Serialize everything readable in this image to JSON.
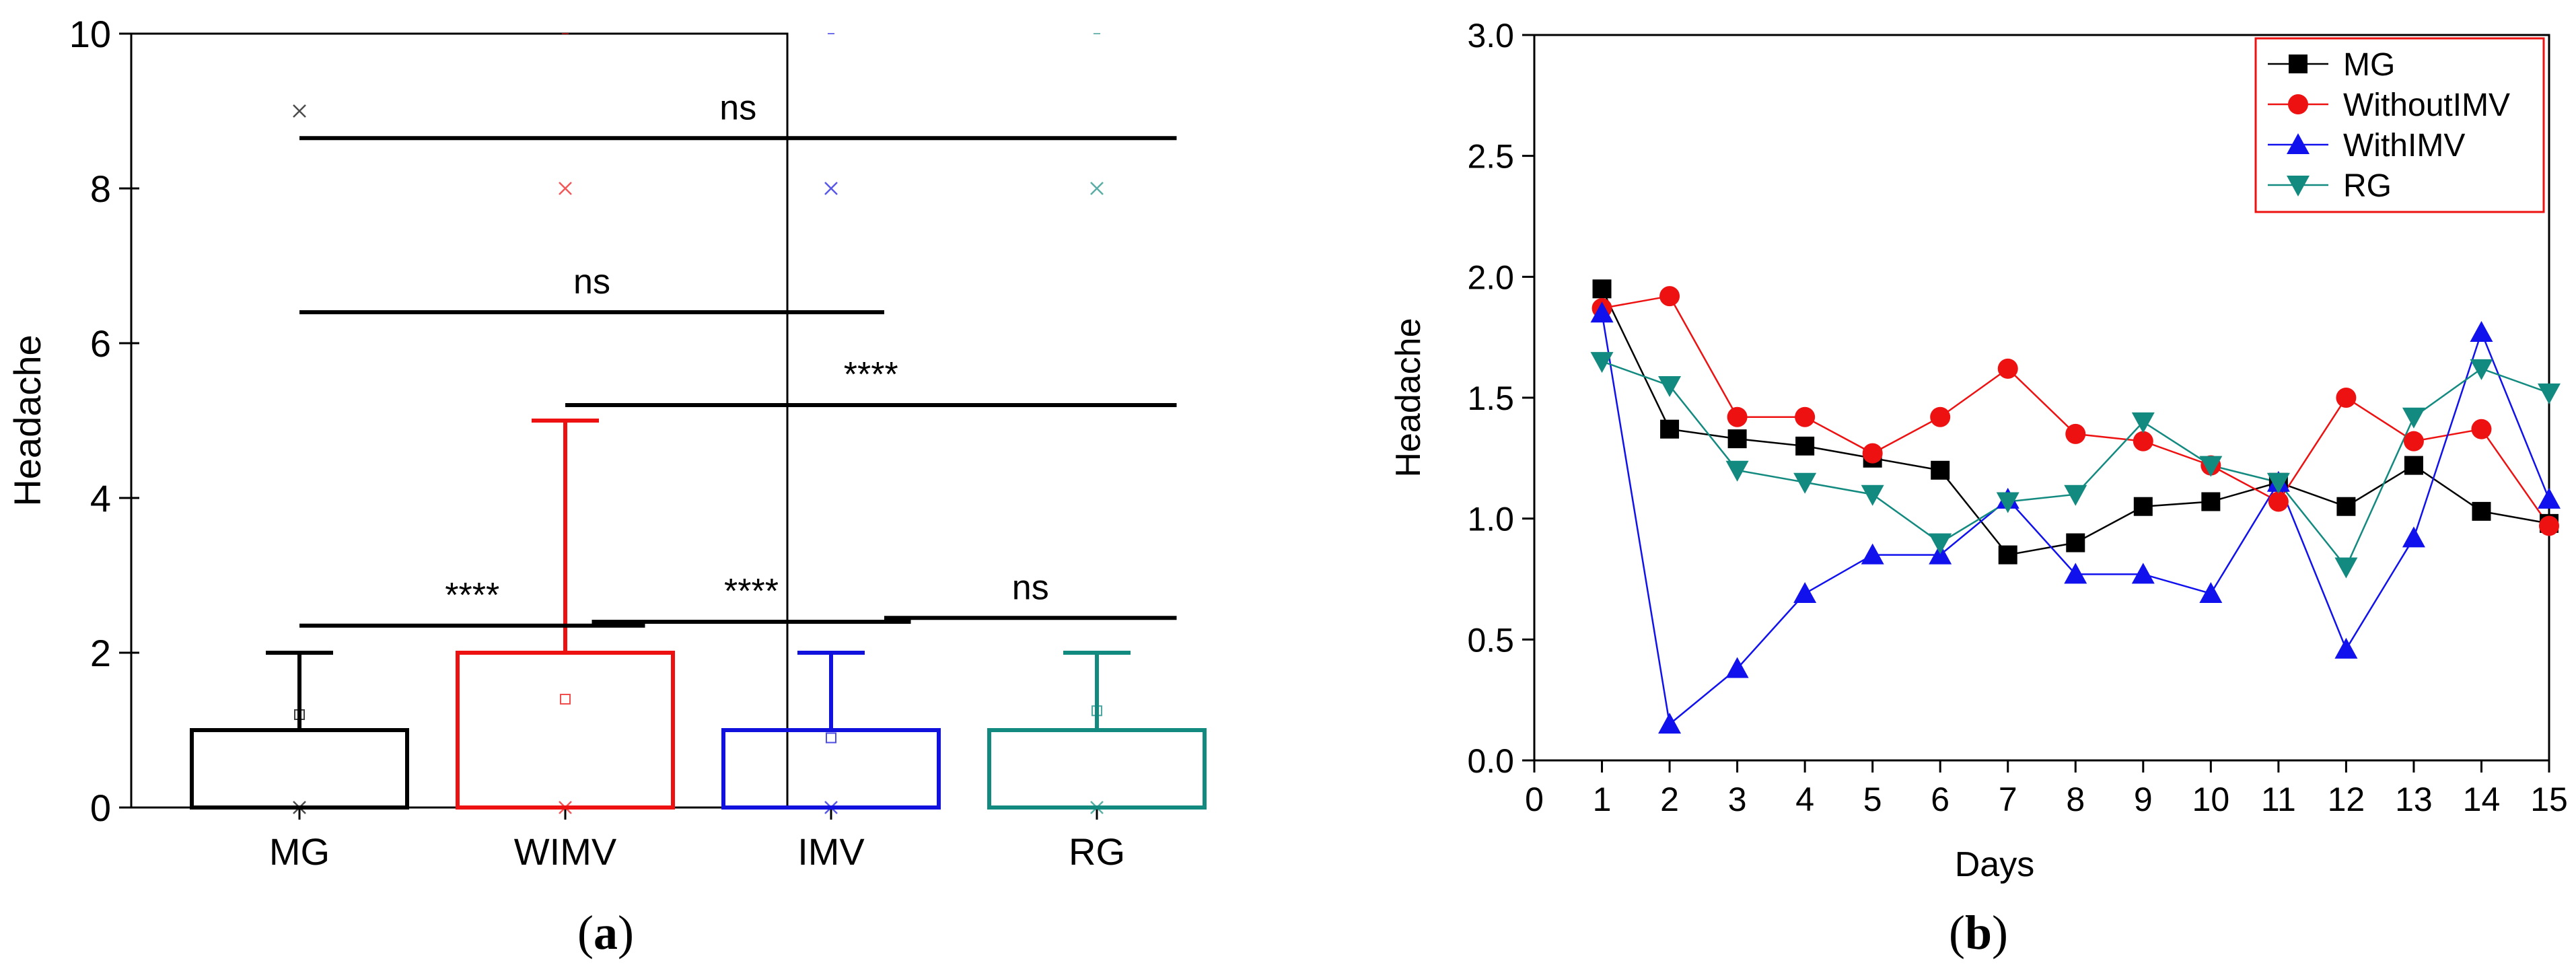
{
  "chart_data": [
    {
      "type": "box",
      "panel_label": "a",
      "ylabel": "Headache",
      "xlabel": "",
      "ylim": [
        0,
        10
      ],
      "yticks": [
        "0",
        "2",
        "4",
        "6",
        "8",
        "10"
      ],
      "categories": [
        "MG",
        "WIMV",
        "IMV",
        "RG"
      ],
      "colors": [
        "#000000",
        "#ee1111",
        "#1111dd",
        "#138a80"
      ],
      "boxes": [
        {
          "name": "MG",
          "q1": 0,
          "q3": 1,
          "whisker_low": 0,
          "whisker_high": 2,
          "mean": 1.2,
          "outliers": [
            9
          ],
          "min_marker": 0,
          "extra_marker": 10
        },
        {
          "name": "WIMV",
          "q1": 0,
          "q3": 2,
          "whisker_low": 0,
          "whisker_high": 5,
          "mean": 1.4,
          "outliers": [
            8
          ],
          "min_marker": 0,
          "extra_marker": 10
        },
        {
          "name": "IMV",
          "q1": 0,
          "q3": 1,
          "whisker_low": 0,
          "whisker_high": 2,
          "mean": 0.9,
          "outliers": [
            8
          ],
          "min_marker": 0,
          "extra_marker": 10
        },
        {
          "name": "RG",
          "q1": 0,
          "q3": 1,
          "whisker_low": 0,
          "whisker_high": 2,
          "mean": 1.25,
          "outliers": [
            8
          ],
          "min_marker": 0,
          "extra_marker": 10
        }
      ],
      "significance": [
        {
          "label": "****",
          "from": 0,
          "to": 1.3,
          "y": 2.35
        },
        {
          "label": "****",
          "from": 1.1,
          "to": 2.3,
          "y": 2.4
        },
        {
          "label": "ns",
          "from": 2.2,
          "to": 3.3,
          "y": 2.45
        },
        {
          "label": "****",
          "from": 1.0,
          "to": 3.3,
          "y": 5.2
        },
        {
          "label": "ns",
          "from": 0,
          "to": 2.2,
          "y": 6.4
        },
        {
          "label": "ns",
          "from": 0,
          "to": 3.3,
          "y": 8.65
        }
      ]
    },
    {
      "type": "line",
      "panel_label": "b",
      "xlabel": "Days",
      "ylabel": "Headache",
      "xlim": [
        0,
        15
      ],
      "ylim": [
        0,
        3.0
      ],
      "xticks": [
        "0",
        "1",
        "2",
        "3",
        "4",
        "5",
        "6",
        "7",
        "8",
        "9",
        "10",
        "11",
        "12",
        "13",
        "14",
        "15"
      ],
      "yticks": [
        "0.0",
        "0.5",
        "1.0",
        "1.5",
        "2.0",
        "2.5",
        "3.0"
      ],
      "legend_position": "top-right",
      "x": [
        1,
        2,
        3,
        4,
        5,
        6,
        7,
        8,
        9,
        10,
        11,
        12,
        13,
        14,
        15
      ],
      "series": [
        {
          "name": "MG",
          "color": "#000000",
          "marker": "square",
          "values": [
            1.95,
            1.37,
            1.33,
            1.3,
            1.25,
            1.2,
            0.85,
            0.9,
            1.05,
            1.07,
            1.15,
            1.05,
            1.22,
            1.03,
            0.98
          ]
        },
        {
          "name": "WithoutIMV",
          "color": "#ee1111",
          "marker": "circle",
          "values": [
            1.87,
            1.92,
            1.42,
            1.42,
            1.27,
            1.42,
            1.62,
            1.35,
            1.32,
            1.22,
            1.07,
            1.5,
            1.32,
            1.37,
            0.97
          ]
        },
        {
          "name": "WithIMV",
          "color": "#1111ee",
          "marker": "triangle-up",
          "values": [
            1.85,
            0.15,
            0.38,
            0.69,
            0.85,
            0.85,
            1.08,
            0.77,
            0.77,
            0.69,
            1.15,
            0.46,
            0.92,
            1.77,
            1.08
          ]
        },
        {
          "name": "RG",
          "color": "#138a80",
          "marker": "triangle-down",
          "values": [
            1.65,
            1.55,
            1.2,
            1.15,
            1.1,
            0.9,
            1.07,
            1.1,
            1.4,
            1.22,
            1.15,
            0.8,
            1.42,
            1.62,
            1.52
          ]
        }
      ]
    }
  ]
}
